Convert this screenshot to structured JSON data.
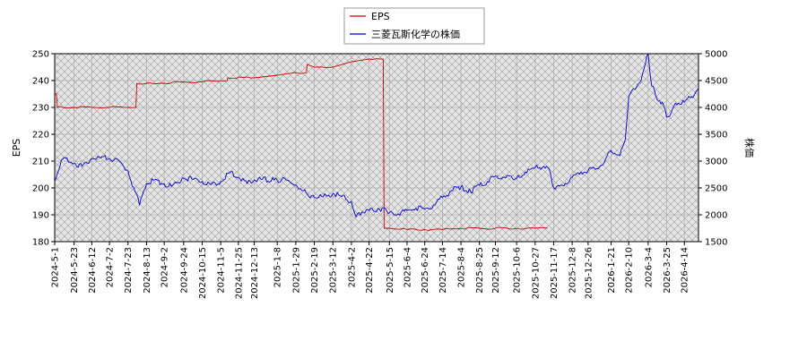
{
  "chart_data": {
    "type": "line",
    "legend": {
      "placement": "top-center",
      "entries": [
        {
          "label": "EPS",
          "color": "#cc0000"
        },
        {
          "label": "三菱瓦斯化学の株価",
          "color": "#0000cc"
        }
      ]
    },
    "ylabel_left": "EPS",
    "ylabel_right": "株価",
    "ylim_left": [
      180,
      250
    ],
    "ylim_right": [
      1500,
      5000
    ],
    "yticks_left": [
      "180",
      "190",
      "200",
      "210",
      "220",
      "230",
      "240",
      "250"
    ],
    "yticks_right": [
      "1500",
      "2000",
      "2500",
      "3000",
      "3500",
      "4000",
      "4500",
      "5000"
    ],
    "x_range": [
      "2024-5-1",
      "2026-4-30"
    ],
    "x_tick_labels": [
      "2024-5-1",
      "2024-5-23",
      "2024-6-12",
      "2024-7-2",
      "2024-7-23",
      "2024-8-13",
      "2024-9-2",
      "2024-9-24",
      "2024-10-15",
      "2024-11-5",
      "2024-11-25",
      "2024-12-13",
      "2025-1-8",
      "2025-1-29",
      "2025-2-19",
      "2025-3-12",
      "2025-4-2",
      "2025-4-22",
      "2025-5-15",
      "2025-6-4",
      "2025-6-24",
      "2025-7-14",
      "2025-8-4",
      "2025-8-25",
      "2025-9-12",
      "2025-10-6",
      "2025-10-27",
      "2025-11-17",
      "2025-12-8",
      "2025-12-26",
      "2026-1-21",
      "2026-2-10",
      "2026-3-4",
      "2026-3-25",
      "2026-4-14"
    ],
    "grid": true,
    "series": [
      {
        "name": "EPS",
        "axis": "left",
        "color": "#cc0000",
        "points": [
          [
            "2024-5-1",
            235
          ],
          [
            "2024-5-3",
            235
          ],
          [
            "2024-5-4",
            230
          ],
          [
            "2024-5-23",
            230
          ],
          [
            "2024-6-12",
            230
          ],
          [
            "2024-7-2",
            230
          ],
          [
            "2024-7-23",
            230
          ],
          [
            "2024-8-1",
            230
          ],
          [
            "2024-8-2",
            239
          ],
          [
            "2024-8-13",
            239
          ],
          [
            "2024-9-2",
            239
          ],
          [
            "2024-9-24",
            239.5
          ],
          [
            "2024-10-15",
            239.5
          ],
          [
            "2024-11-5",
            240
          ],
          [
            "2024-11-12",
            240
          ],
          [
            "2024-11-13",
            241
          ],
          [
            "2024-12-13",
            241
          ],
          [
            "2025-1-8",
            242
          ],
          [
            "2025-1-29",
            243
          ],
          [
            "2025-2-10",
            243
          ],
          [
            "2025-2-11",
            246
          ],
          [
            "2025-2-19",
            245
          ],
          [
            "2025-3-12",
            245
          ],
          [
            "2025-4-2",
            247
          ],
          [
            "2025-4-22",
            248
          ],
          [
            "2025-5-8",
            248
          ],
          [
            "2025-5-9",
            185
          ],
          [
            "2025-5-15",
            185
          ],
          [
            "2025-6-4",
            184.5
          ],
          [
            "2025-6-24",
            184.5
          ],
          [
            "2025-7-14",
            184.5
          ],
          [
            "2025-8-4",
            185
          ],
          [
            "2025-8-25",
            185
          ],
          [
            "2025-9-12",
            185
          ],
          [
            "2025-10-6",
            185
          ],
          [
            "2025-10-27",
            185
          ],
          [
            "2025-11-10",
            185
          ]
        ]
      },
      {
        "name": "三菱瓦斯化学の株価",
        "axis": "right",
        "color": "#0000cc",
        "points": [
          [
            "2024-5-1",
            2630
          ],
          [
            "2024-5-10",
            3040
          ],
          [
            "2024-5-23",
            2960
          ],
          [
            "2024-6-1",
            2900
          ],
          [
            "2024-6-12",
            3050
          ],
          [
            "2024-6-22",
            3060
          ],
          [
            "2024-7-2",
            3050
          ],
          [
            "2024-7-12",
            3020
          ],
          [
            "2024-7-23",
            2820
          ],
          [
            "2024-8-5",
            2180
          ],
          [
            "2024-8-13",
            2580
          ],
          [
            "2024-8-22",
            2650
          ],
          [
            "2024-9-2",
            2580
          ],
          [
            "2024-9-10",
            2530
          ],
          [
            "2024-9-24",
            2680
          ],
          [
            "2024-10-5",
            2660
          ],
          [
            "2024-10-15",
            2620
          ],
          [
            "2024-10-25",
            2560
          ],
          [
            "2024-11-5",
            2620
          ],
          [
            "2024-11-15",
            2780
          ],
          [
            "2024-11-25",
            2700
          ],
          [
            "2024-12-5",
            2580
          ],
          [
            "2024-12-13",
            2650
          ],
          [
            "2024-12-22",
            2660
          ],
          [
            "2025-1-8",
            2640
          ],
          [
            "2025-1-18",
            2650
          ],
          [
            "2025-1-29",
            2560
          ],
          [
            "2025-2-5",
            2450
          ],
          [
            "2025-2-19",
            2320
          ],
          [
            "2025-3-1",
            2330
          ],
          [
            "2025-3-12",
            2400
          ],
          [
            "2025-3-22",
            2340
          ],
          [
            "2025-4-2",
            2250
          ],
          [
            "2025-4-7",
            1960
          ],
          [
            "2025-4-14",
            2050
          ],
          [
            "2025-4-22",
            2080
          ],
          [
            "2025-5-2",
            2120
          ],
          [
            "2025-5-15",
            2040
          ],
          [
            "2025-5-25",
            2020
          ],
          [
            "2025-6-4",
            2080
          ],
          [
            "2025-6-14",
            2120
          ],
          [
            "2025-6-24",
            2110
          ],
          [
            "2025-7-4",
            2180
          ],
          [
            "2025-7-14",
            2320
          ],
          [
            "2025-7-24",
            2450
          ],
          [
            "2025-8-4",
            2520
          ],
          [
            "2025-8-15",
            2420
          ],
          [
            "2025-8-25",
            2550
          ],
          [
            "2025-9-3",
            2620
          ],
          [
            "2025-9-12",
            2720
          ],
          [
            "2025-9-22",
            2700
          ],
          [
            "2025-10-6",
            2680
          ],
          [
            "2025-10-16",
            2800
          ],
          [
            "2025-10-27",
            2880
          ],
          [
            "2025-11-6",
            2900
          ],
          [
            "2025-11-12",
            2850
          ],
          [
            "2025-11-17",
            2500
          ],
          [
            "2025-11-27",
            2550
          ],
          [
            "2025-12-8",
            2700
          ],
          [
            "2025-12-18",
            2800
          ],
          [
            "2025-12-26",
            2820
          ],
          [
            "2026-1-8",
            2900
          ],
          [
            "2026-1-15",
            3050
          ],
          [
            "2026-1-21",
            3200
          ],
          [
            "2026-1-31",
            3100
          ],
          [
            "2026-2-6",
            3400
          ],
          [
            "2026-2-10",
            4200
          ],
          [
            "2026-2-16",
            4350
          ],
          [
            "2026-2-24",
            4500
          ],
          [
            "2026-3-4",
            5000
          ],
          [
            "2026-3-8",
            4400
          ],
          [
            "2026-3-14",
            4150
          ],
          [
            "2026-3-20",
            4100
          ],
          [
            "2026-3-25",
            3820
          ],
          [
            "2026-3-30",
            3900
          ],
          [
            "2026-4-4",
            4080
          ],
          [
            "2026-4-14",
            4100
          ],
          [
            "2026-4-22",
            4200
          ],
          [
            "2026-4-30",
            4350
          ]
        ]
      }
    ]
  }
}
